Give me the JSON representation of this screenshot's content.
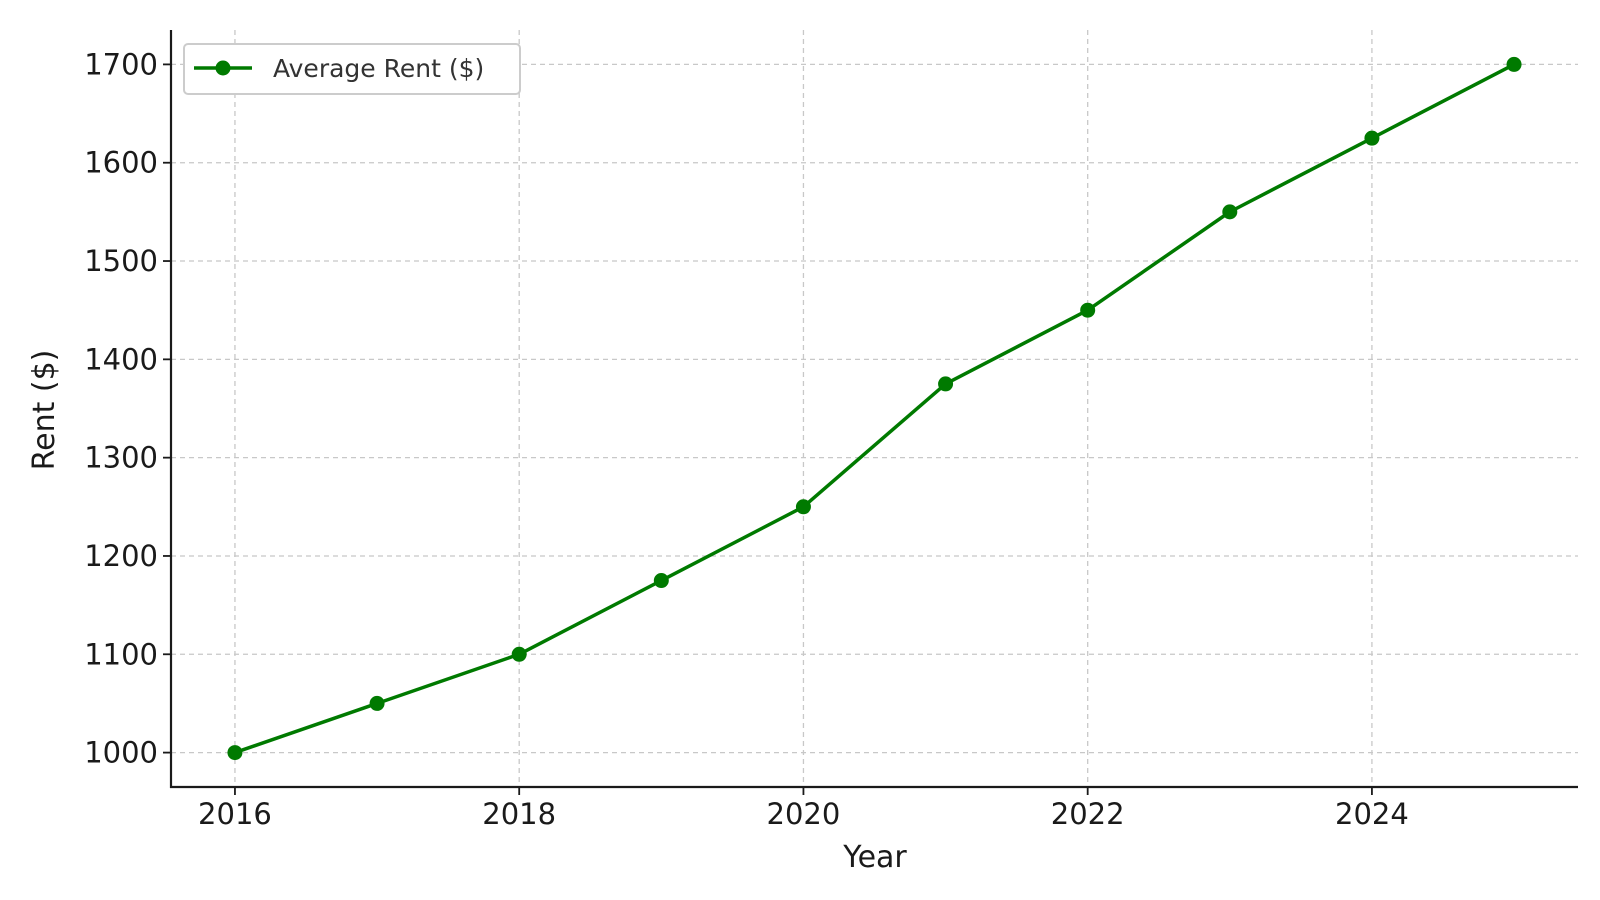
{
  "chart_data": {
    "type": "line",
    "title": "",
    "xlabel": "Year",
    "ylabel": "Rent ($)",
    "x": [
      2016,
      2017,
      2018,
      2019,
      2020,
      2021,
      2022,
      2023,
      2024,
      2025
    ],
    "series": [
      {
        "name": "Average Rent ($)",
        "values": [
          1000,
          1050,
          1100,
          1175,
          1250,
          1375,
          1450,
          1550,
          1625,
          1700
        ],
        "color": "#007a00",
        "marker": "circle"
      }
    ],
    "xlim": [
      2015.55,
      2025.45
    ],
    "ylim": [
      965,
      1735
    ],
    "xticks": [
      2016,
      2018,
      2020,
      2022,
      2024
    ],
    "yticks": [
      1000,
      1100,
      1200,
      1300,
      1400,
      1500,
      1600,
      1700
    ],
    "grid": true,
    "grid_style": "dashed",
    "legend_position": "top-left"
  },
  "colors": {
    "axis": "#1a1a1a",
    "grid": "#c8c8c8",
    "legend_border": "#cccccc"
  }
}
